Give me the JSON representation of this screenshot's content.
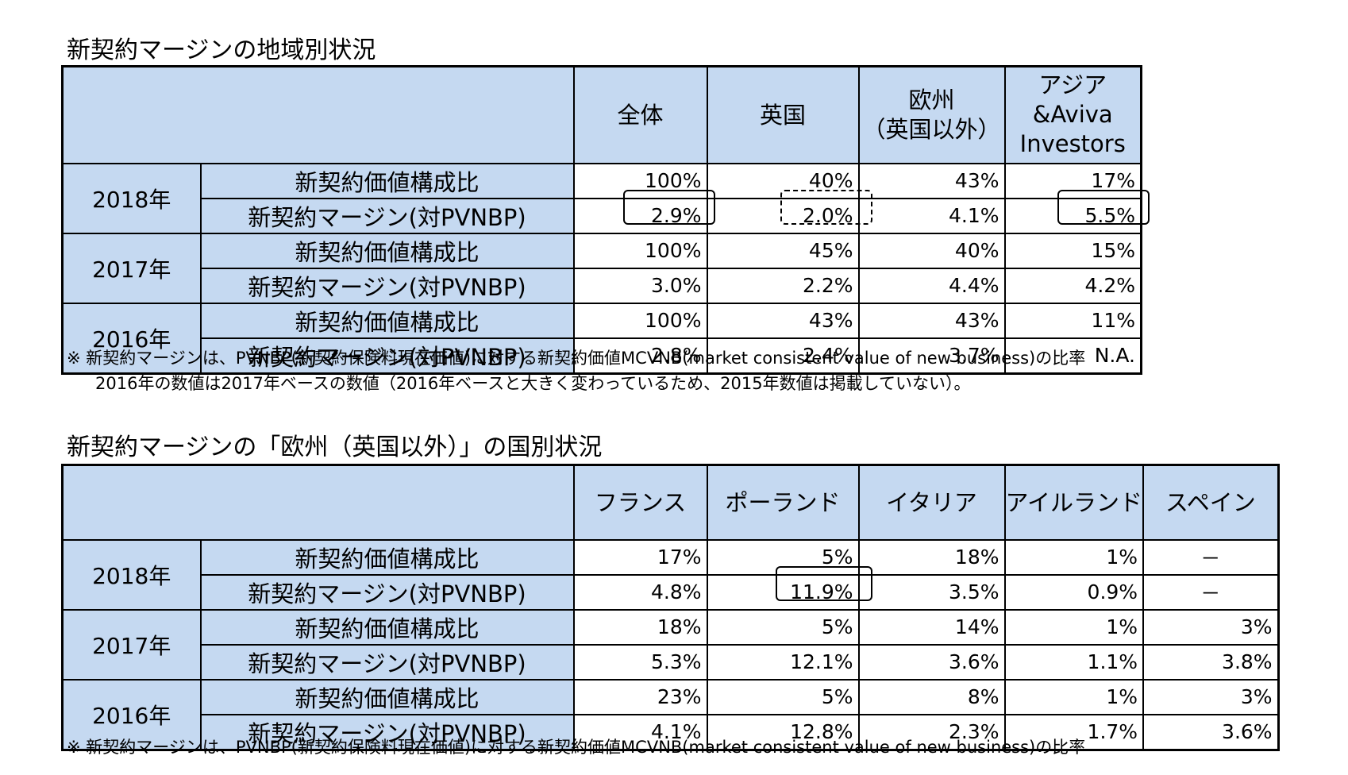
{
  "table1": {
    "title": "新契約マージンの地域別状況",
    "headers": [
      "全体",
      "英国",
      "欧州\n（英国以外）",
      "アジア\n&Aviva\nInvestors"
    ],
    "metric_labels": [
      "新契約価値構成比",
      "新契約マージン(対PVNBP)"
    ],
    "rows": [
      {
        "year": "2018年",
        "composition": [
          "100%",
          "40%",
          "43%",
          "17%"
        ],
        "margin": [
          "2.9%",
          "2.0%",
          "4.1%",
          "5.5%"
        ]
      },
      {
        "year": "2017年",
        "composition": [
          "100%",
          "45%",
          "40%",
          "15%"
        ],
        "margin": [
          "3.0%",
          "2.2%",
          "4.4%",
          "4.2%"
        ]
      },
      {
        "year": "2016年",
        "composition": [
          "100%",
          "43%",
          "43%",
          "11%"
        ],
        "margin": [
          "2.8%",
          "2.4%",
          "3.7%",
          "N.A."
        ]
      }
    ],
    "notes": [
      "※ 新契約マージンは、PVNBP(新契約保険料現在価値)に対する新契約価値MCVNB(market consistent value of new business)の比率",
      "2016年の数値は2017年ベースの数値（2016年ベースと大きく変わっているため、2015年数値は掲載していない）。"
    ]
  },
  "table2": {
    "title": "新契約マージンの「欧州（英国以外）」の国別状況",
    "headers": [
      "フランス",
      "ポーランド",
      "イタリア",
      "アイルランド",
      "スペイン"
    ],
    "metric_labels": [
      "新契約価値構成比",
      "新契約マージン(対PVNBP)"
    ],
    "rows": [
      {
        "year": "2018年",
        "composition": [
          "17%",
          "5%",
          "18%",
          "1%",
          "－"
        ],
        "margin": [
          "4.8%",
          "11.9%",
          "3.5%",
          "0.9%",
          "－"
        ]
      },
      {
        "year": "2017年",
        "composition": [
          "18%",
          "5%",
          "14%",
          "1%",
          "3%"
        ],
        "margin": [
          "5.3%",
          "12.1%",
          "3.6%",
          "1.1%",
          "3.8%"
        ]
      },
      {
        "year": "2016年",
        "composition": [
          "23%",
          "5%",
          "8%",
          "1%",
          "3%"
        ],
        "margin": [
          "4.1%",
          "12.8%",
          "2.3%",
          "1.7%",
          "3.6%"
        ]
      }
    ],
    "notes": [
      "※ 新契約マージンは、PVNBP(新契約保険料現在価値)に対する新契約価値MCVNB(market consistent value of new business)の比率"
    ]
  }
}
